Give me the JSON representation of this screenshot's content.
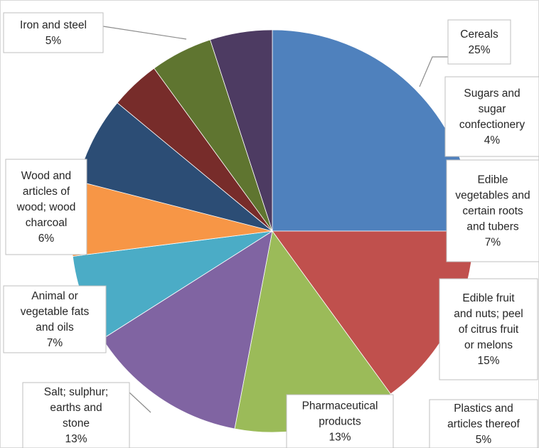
{
  "chart_data": {
    "type": "pie",
    "title": "",
    "slices": [
      {
        "label": "Cereals",
        "value": 25,
        "value_label": "25%",
        "color": "#4f81bd"
      },
      {
        "label": "Edible fruit and nuts; peel of citrus fruit or melons",
        "value": 15,
        "value_label": "15%",
        "color": "#c0504d"
      },
      {
        "label": "Pharmaceutical products",
        "value": 13,
        "value_label": "13%",
        "color": "#9bbb59"
      },
      {
        "label": "Salt; sulphur; earths and stone",
        "value": 13,
        "value_label": "13%",
        "color": "#8064a2"
      },
      {
        "label": "Animal or vegetable fats and oils",
        "value": 7,
        "value_label": "7%",
        "color": "#4bacc6"
      },
      {
        "label": "Wood and articles of wood; wood charcoal",
        "value": 6,
        "value_label": "6%",
        "color": "#f79646"
      },
      {
        "label": "Edible vegetables and certain roots and tubers",
        "value": 7,
        "value_label": "7%",
        "color": "#2c4d75"
      },
      {
        "label": "Sugars and sugar confectionery",
        "value": 4,
        "value_label": "4%",
        "color": "#772c2a"
      },
      {
        "label": "Iron and steel",
        "value": 5,
        "value_label": "5%",
        "color": "#5f7530"
      },
      {
        "label": "Plastics and articles thereof",
        "value": 5,
        "value_label": "5%",
        "color": "#4d3b62"
      }
    ]
  }
}
